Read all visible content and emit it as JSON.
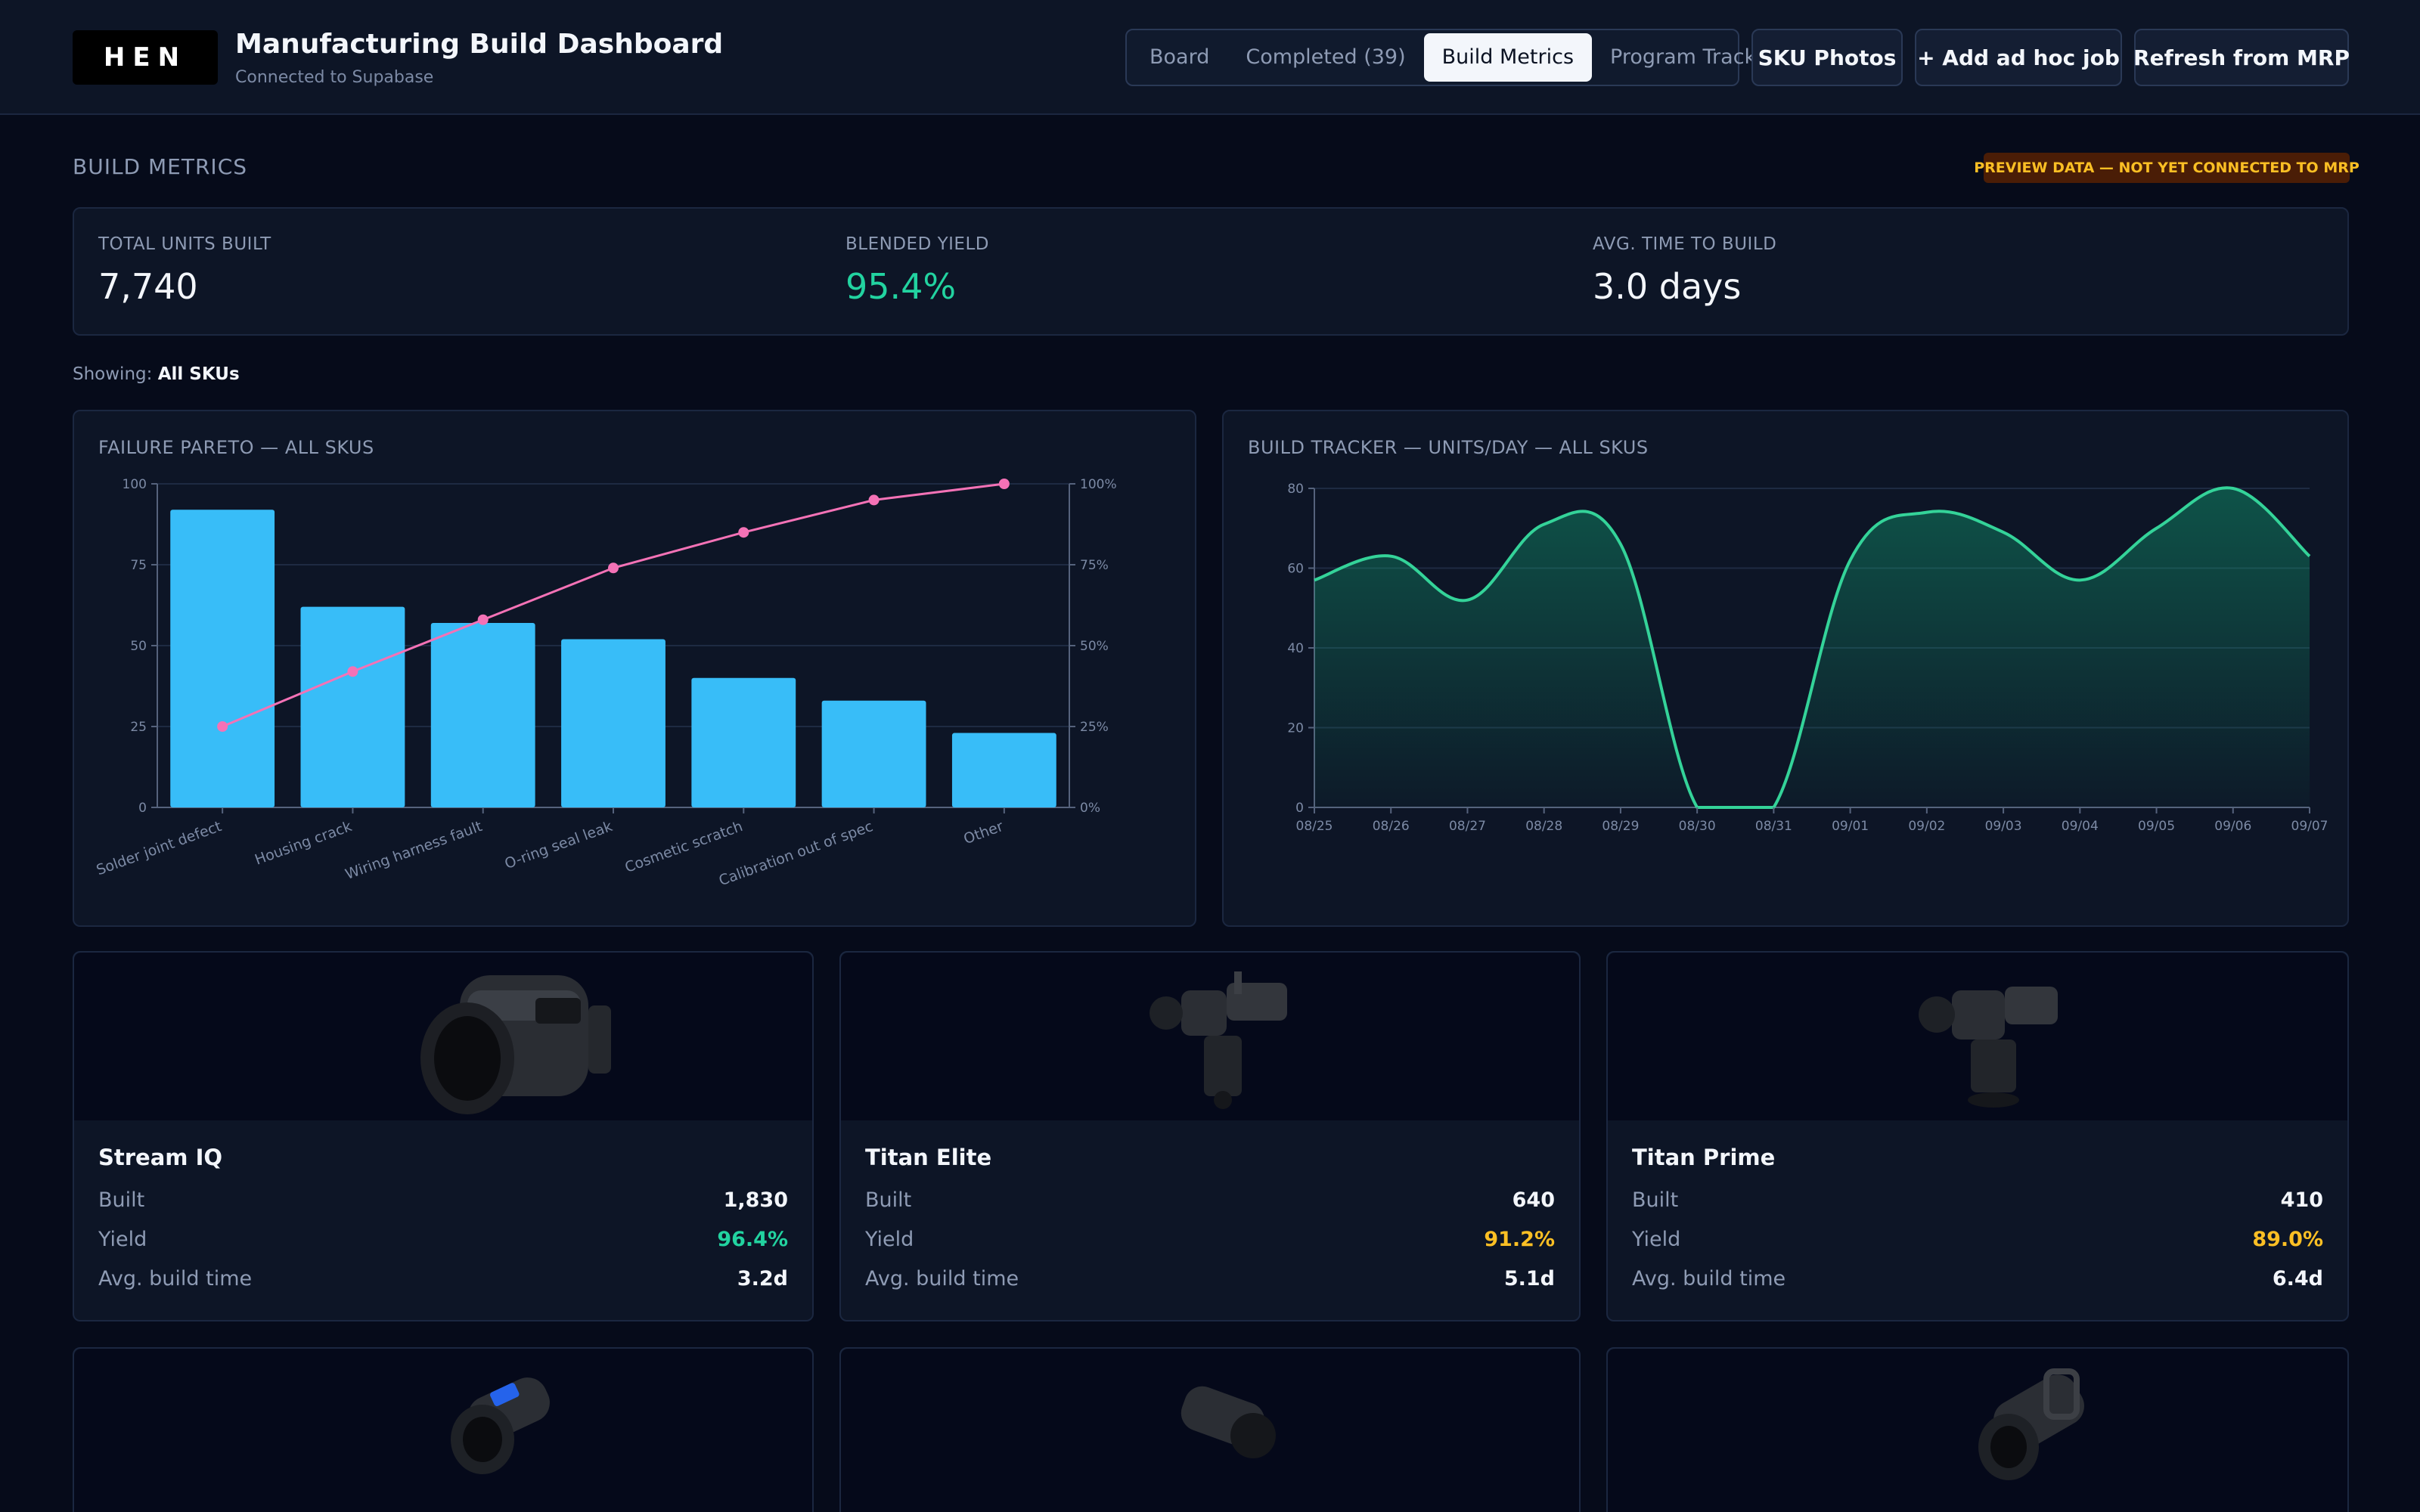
{
  "header": {
    "logo_text": "HEN",
    "title": "Manufacturing Build Dashboard",
    "subtitle": "Connected to Supabase",
    "tabs": [
      {
        "label": "Board",
        "active": false
      },
      {
        "label": "Completed (39)",
        "active": false
      },
      {
        "label": "Build Metrics",
        "active": true
      },
      {
        "label": "Program Track",
        "active": false
      }
    ],
    "buttons": {
      "sku_photos": "SKU Photos",
      "add_job": "+ Add ad hoc job",
      "refresh": "Refresh from MRP"
    }
  },
  "section": {
    "title": "BUILD METRICS",
    "badge": "PREVIEW DATA — NOT YET CONNECTED TO MRP"
  },
  "kpis": [
    {
      "label": "TOTAL UNITS BUILT",
      "value": "7,740",
      "color": "#f3f6fb"
    },
    {
      "label": "BLENDED YIELD",
      "value": "95.4%",
      "color": "#22d3a0"
    },
    {
      "label": "AVG. TIME TO BUILD",
      "value": "3.0 days",
      "color": "#f3f6fb"
    }
  ],
  "filter": {
    "label": "Showing:",
    "value": "All SKUs"
  },
  "chart_data": [
    {
      "type": "bar",
      "title": "FAILURE PARETO — ALL SKUS",
      "categories": [
        "Solder joint defect",
        "Housing crack",
        "Wiring harness fault",
        "O-ring seal leak",
        "Cosmetic scratch",
        "Calibration out of spec",
        "Other"
      ],
      "values": [
        92,
        62,
        57,
        52,
        40,
        33,
        23
      ],
      "ylim": [
        0,
        100
      ],
      "yticks": [
        "0",
        "25",
        "50",
        "75",
        "100"
      ],
      "cumulative": [
        25,
        42,
        58,
        74,
        85,
        95,
        100
      ],
      "y2ticks": [
        "0%",
        "25%",
        "50%",
        "75%",
        "100%"
      ],
      "bar_color": "#38bdf8",
      "line_color": "#f472b6",
      "grid": true
    },
    {
      "type": "area",
      "title": "BUILD TRACKER — UNITS/DAY — ALL SKUS",
      "x": [
        "08/25",
        "08/26",
        "08/27",
        "08/28",
        "08/29",
        "08/30",
        "08/31",
        "09/01",
        "09/02",
        "09/03",
        "09/04",
        "09/05",
        "09/06",
        "09/07"
      ],
      "values": [
        57,
        63,
        52,
        71,
        66,
        0,
        0,
        62,
        74,
        69,
        57,
        70,
        80,
        63
      ],
      "ylim": [
        0,
        80
      ],
      "yticks": [
        "0",
        "20",
        "40",
        "60",
        "80"
      ],
      "line_color": "#34d399",
      "grid": true
    }
  ],
  "skus": [
    {
      "name": "Stream IQ",
      "built_label": "Built",
      "built": "1,830",
      "yield_label": "Yield",
      "yield": "96.4%",
      "yield_color": "#22d3a0",
      "time_label": "Avg. build time",
      "time": "3.2d",
      "icon": "thermal-monocular-icon"
    },
    {
      "name": "Titan Elite",
      "built_label": "Built",
      "built": "640",
      "yield_label": "Yield",
      "yield": "91.2%",
      "yield_color": "#fbbf24",
      "time_label": "Avg. build time",
      "time": "5.1d",
      "icon": "camera-mount-icon"
    },
    {
      "name": "Titan Prime",
      "built_label": "Built",
      "built": "410",
      "yield_label": "Yield",
      "yield": "89.0%",
      "yield_color": "#fbbf24",
      "time_label": "Avg. build time",
      "time": "6.4d",
      "icon": "camera-mount-icon"
    },
    {
      "icon": "scope-icon"
    },
    {
      "icon": "sensor-icon"
    },
    {
      "icon": "handheld-imager-icon"
    }
  ]
}
